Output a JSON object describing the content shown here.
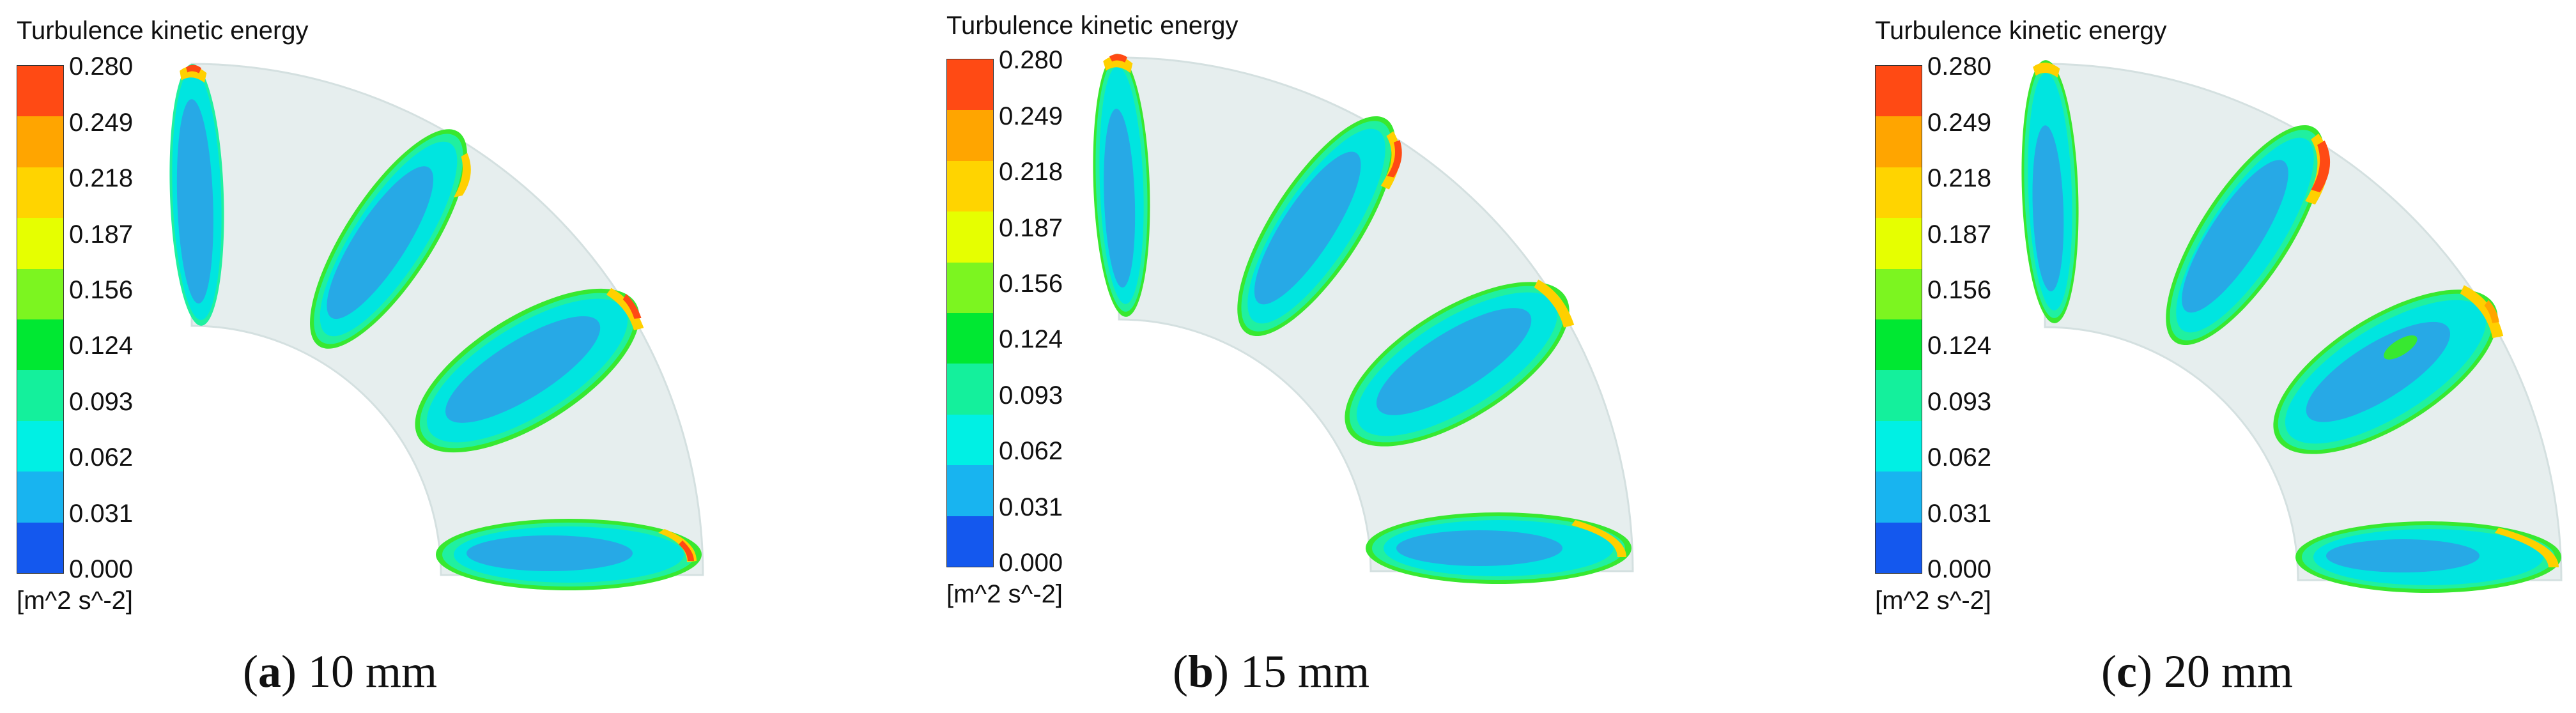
{
  "legend": {
    "title": "Turbulence kinetic energy",
    "unit": "[m^2 s^-2]",
    "ticks": [
      "0.280",
      "0.249",
      "0.218",
      "0.187",
      "0.156",
      "0.124",
      "0.093",
      "0.062",
      "0.031",
      "0.000"
    ],
    "bands_top_to_bottom": [
      "#ff4a14",
      "#ffa500",
      "#ffd400",
      "#e6ff00",
      "#7cf520",
      "#00e832",
      "#14f09c",
      "#00f0e4",
      "#18b4f0",
      "#1458ee"
    ]
  },
  "colors": {
    "pipe_surface": "#e6eeee",
    "pipe_edge": "#d4e0e0",
    "section_core": "#27a9e6",
    "section_mid": "#00e5e0",
    "section_outer": "#20f0a0",
    "section_ring": "#38e830",
    "section_hot": "#ffd000",
    "section_peak": "#ff4a14"
  },
  "panels": [
    {
      "id": "a",
      "caption_open": "(",
      "caption_letter": "a",
      "caption_close": ")",
      "caption_text": " 10 mm"
    },
    {
      "id": "b",
      "caption_open": "(",
      "caption_letter": "b",
      "caption_close": ")",
      "caption_text": " 15 mm"
    },
    {
      "id": "c",
      "caption_open": "(",
      "caption_letter": "c",
      "caption_close": ")",
      "caption_text": " 20 mm"
    }
  ]
}
